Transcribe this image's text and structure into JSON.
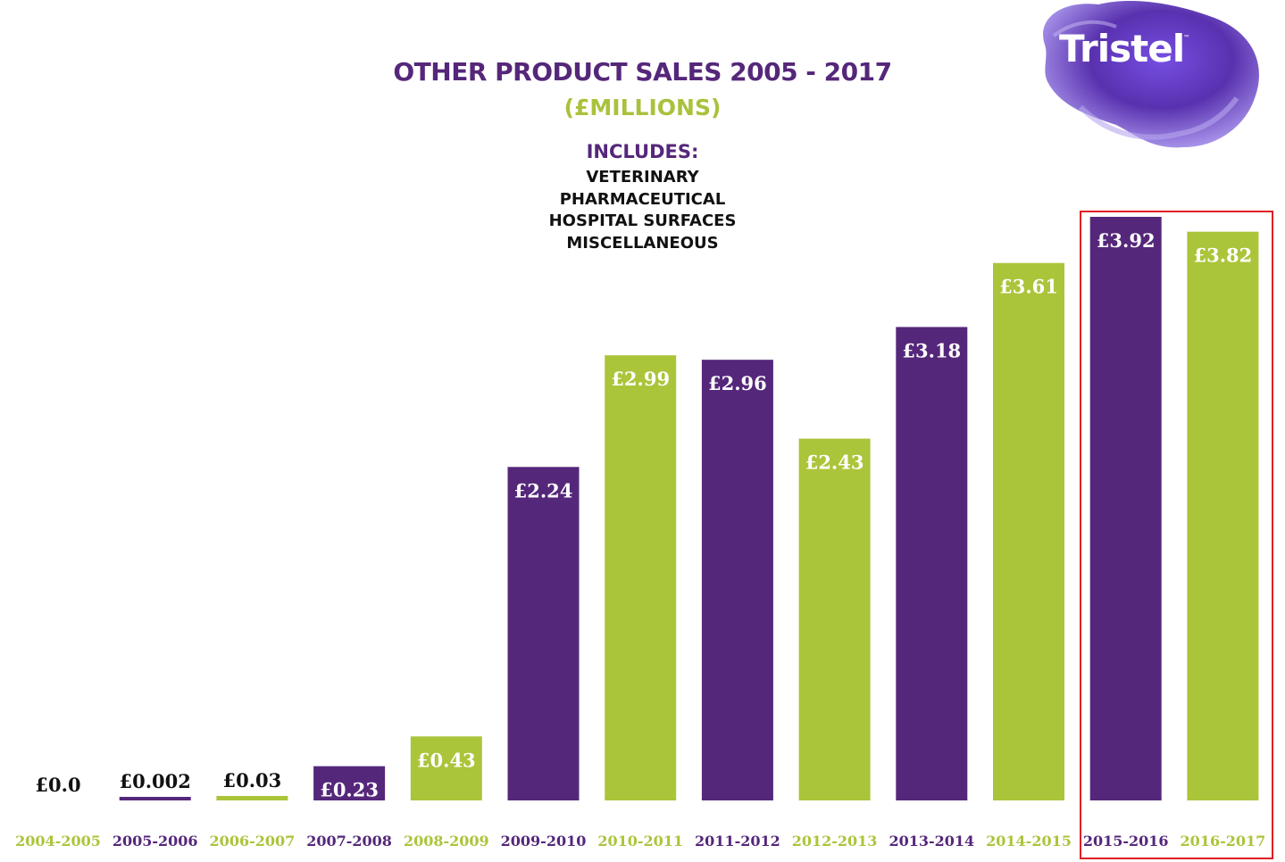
{
  "header": {
    "title": "OTHER PRODUCT SALES 2005 - 2017",
    "subtitle": "(£MILLIONS)",
    "includes_heading": "INCLUDES:",
    "includes_items": [
      "VETERINARY",
      "PHARMACEUTICAL",
      "HOSPITAL SURFACES",
      "MISCELLANEOUS"
    ]
  },
  "logo": {
    "text": "Tristel",
    "tm": "™"
  },
  "colors": {
    "purple": "#55277a",
    "green": "#aac53a",
    "highlight": "#e01b24",
    "dark": "#111111"
  },
  "chart_data": {
    "type": "bar",
    "title": "OTHER PRODUCT SALES 2005 - 2017",
    "subtitle": "(£MILLIONS)",
    "categories": [
      "2004-2005",
      "2005-2006",
      "2006-2007",
      "2007-2008",
      "2008-2009",
      "2009-2010",
      "2010-2011",
      "2011-2012",
      "2012-2013",
      "2013-2014",
      "2014-2015",
      "2015-2016",
      "2016-2017"
    ],
    "values": [
      0.0,
      0.002,
      0.03,
      0.23,
      0.43,
      2.24,
      2.99,
      2.96,
      2.43,
      3.18,
      3.61,
      3.92,
      3.82
    ],
    "value_labels": [
      "£0.0",
      "£0.002",
      "£0.03",
      "£0.23",
      "£0.43",
      "£2.24",
      "£2.99",
      "£2.96",
      "£2.43",
      "£3.18",
      "£3.61",
      "£3.92",
      "£3.82"
    ],
    "bar_colors": [
      "purple",
      "purple",
      "green",
      "purple",
      "green",
      "purple",
      "green",
      "purple",
      "green",
      "purple",
      "green",
      "purple",
      "green"
    ],
    "category_label_colors": [
      "green",
      "purple",
      "green",
      "purple",
      "green",
      "purple",
      "green",
      "purple",
      "green",
      "purple",
      "green",
      "purple",
      "green"
    ],
    "highlighted_categories": [
      "2015-2016",
      "2016-2017"
    ],
    "ylim": [
      0,
      3.92
    ],
    "grid": false,
    "xlabel": "",
    "ylabel": ""
  }
}
